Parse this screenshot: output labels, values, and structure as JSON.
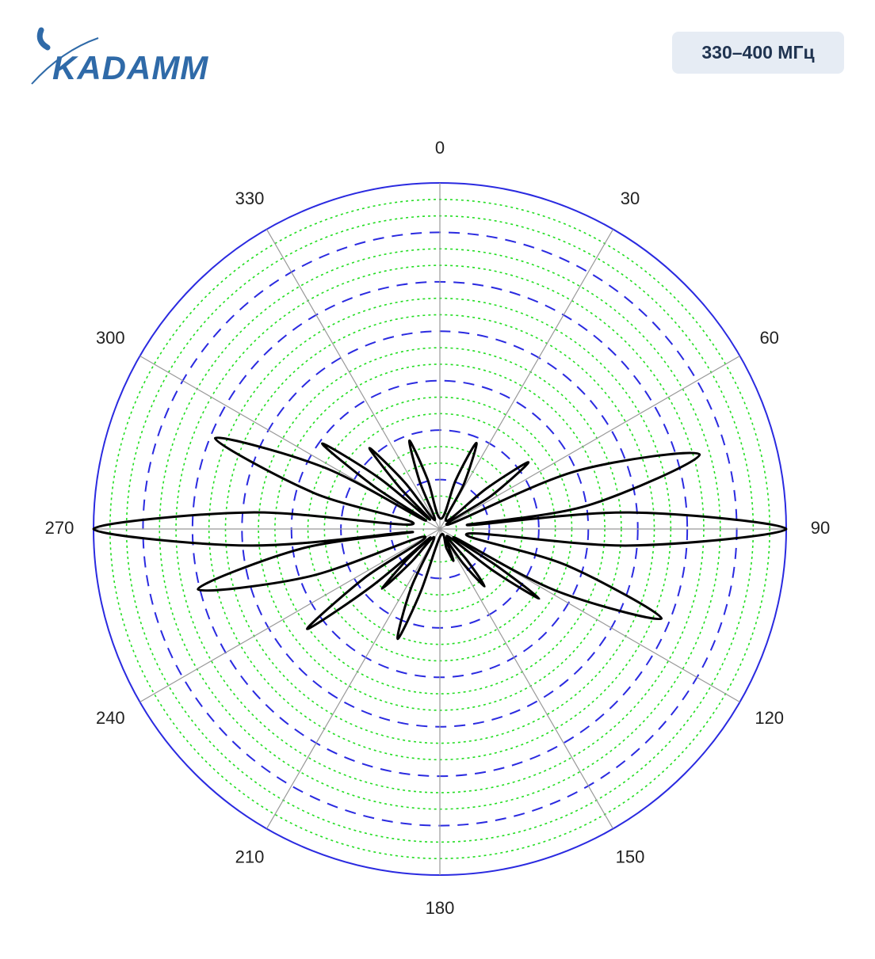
{
  "header": {
    "logo": "KADAMM",
    "badge": "330–400 МГц"
  },
  "chart_data": {
    "type": "polar",
    "direction": "clockwise",
    "zero": "N",
    "rlim": [
      0,
      1
    ],
    "thetaticks": [
      0,
      30,
      60,
      90,
      120,
      150,
      180,
      210,
      240,
      270,
      300,
      330
    ],
    "x": [
      5,
      18,
      23,
      28,
      38,
      49,
      53,
      57,
      63,
      67,
      74,
      81,
      82,
      85,
      90,
      95,
      100,
      106,
      112,
      118,
      120,
      123,
      125,
      128,
      133,
      139,
      142,
      146,
      150,
      154,
      157,
      161,
      175,
      197,
      201,
      206,
      213,
      221,
      224,
      227,
      229,
      230,
      233,
      237,
      244,
      250,
      256,
      262,
      264,
      265,
      270,
      275,
      280,
      286,
      292,
      298,
      300,
      303,
      306,
      310,
      313,
      316,
      319,
      323,
      330,
      337,
      341,
      346
    ],
    "series": [
      {
        "color": "#000000",
        "values": [
          0.03,
          0.15,
          0.27,
          0.15,
          0.03,
          0.18,
          0.32,
          0.18,
          0.03,
          0.43,
          0.78,
          0.43,
          0.08,
          0.55,
          1.0,
          0.55,
          0.08,
          0.38,
          0.69,
          0.38,
          0.05,
          0.2,
          0.35,
          0.2,
          0.03,
          0.12,
          0.21,
          0.12,
          0.03,
          0.06,
          0.1,
          0.06,
          0.02,
          0.19,
          0.34,
          0.19,
          0.03,
          0.13,
          0.24,
          0.13,
          0.04,
          0.26,
          0.48,
          0.26,
          0.05,
          0.4,
          0.72,
          0.4,
          0.08,
          0.55,
          1.0,
          0.55,
          0.08,
          0.38,
          0.7,
          0.38,
          0.05,
          0.23,
          0.42,
          0.23,
          0.04,
          0.17,
          0.31,
          0.17,
          0.03,
          0.15,
          0.27,
          0.15
        ]
      }
    ],
    "ring_color": "#2a2ae0",
    "minor_ring_color": "#22dd22",
    "spoke_color": "#999999"
  }
}
